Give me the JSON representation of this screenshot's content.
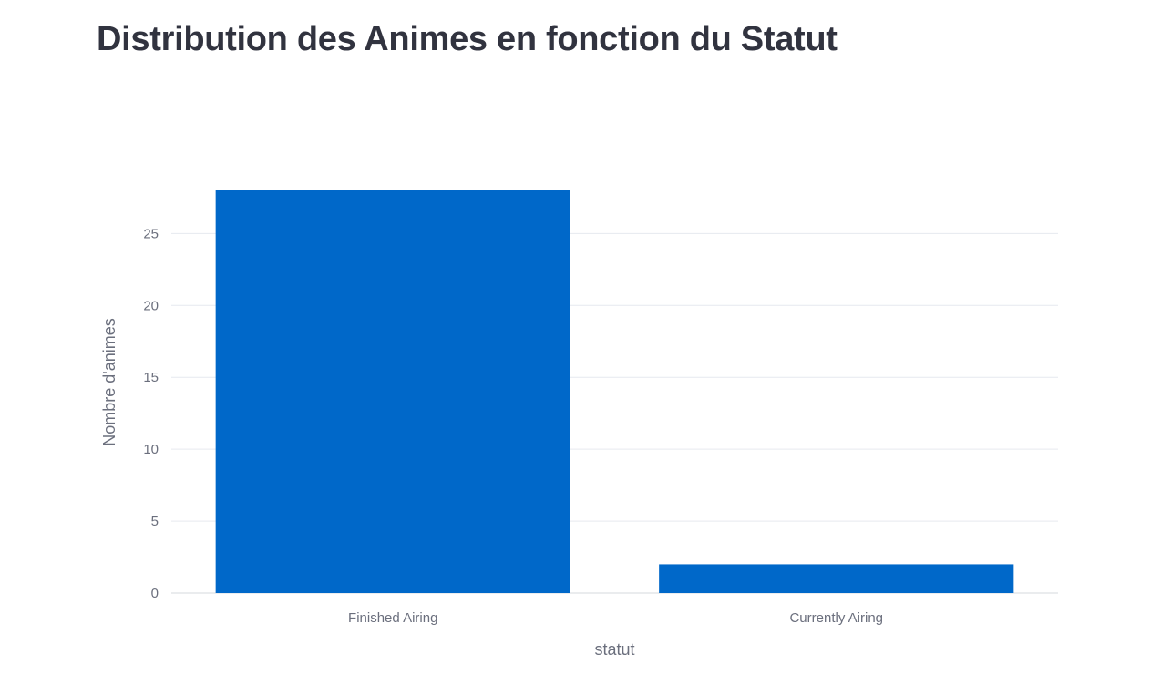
{
  "page": {
    "title": "Distribution des Animes en fonction du Statut"
  },
  "colors": {
    "bar": "#0068c9",
    "grid": "#e6e9ef",
    "axis_text": "#6b6f7d",
    "title": "#31333f"
  },
  "chart_data": {
    "type": "bar",
    "title": "Distribution des Animes en fonction du Statut",
    "categories": [
      "Finished Airing",
      "Currently Airing"
    ],
    "values": [
      28,
      2
    ],
    "xlabel": "statut",
    "ylabel": "Nombre d'animes",
    "ylim": [
      0,
      28
    ],
    "yticks": [
      0,
      5,
      10,
      15,
      20,
      25
    ],
    "grid": true,
    "legend": "none"
  }
}
